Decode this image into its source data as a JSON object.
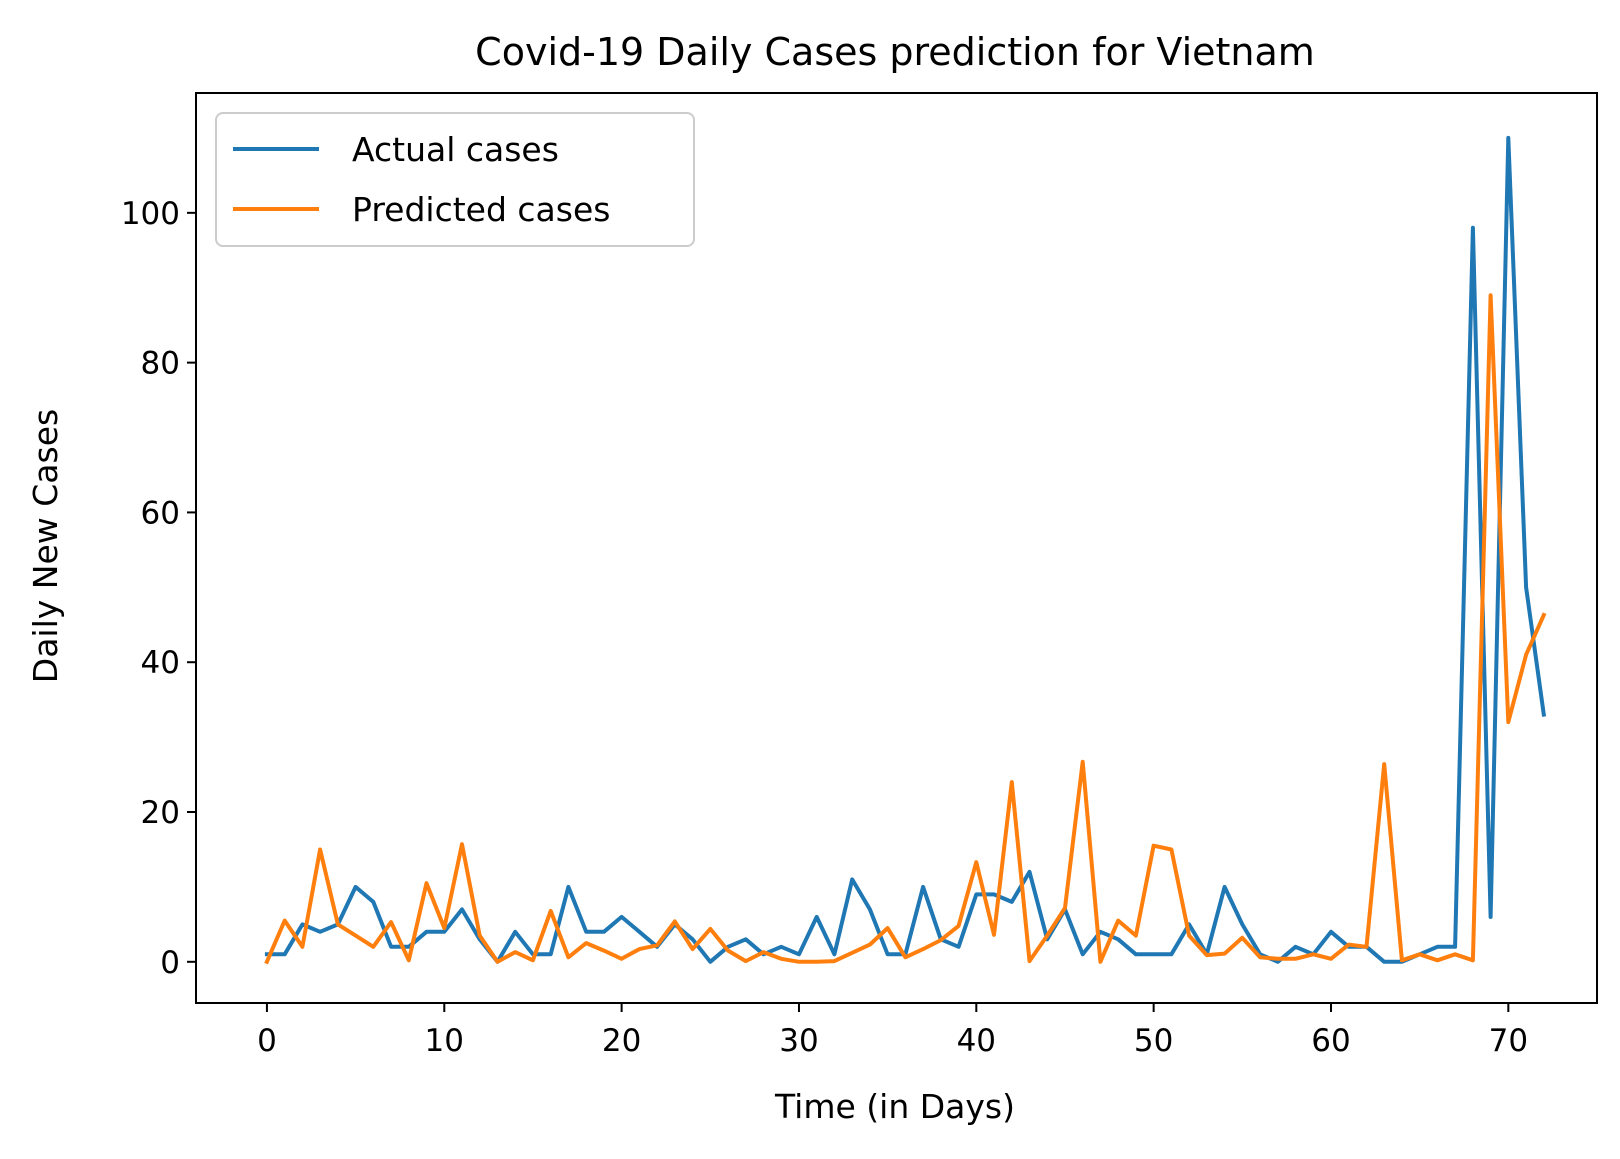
{
  "chart_data": {
    "type": "line",
    "title": "Covid-19 Daily Cases prediction for Vietnam",
    "xlabel": "Time (in Days)",
    "ylabel": "Daily New Cases",
    "xlim": [
      -4,
      75
    ],
    "ylim": [
      -5.5,
      116
    ],
    "xticks": [
      0,
      10,
      20,
      30,
      40,
      50,
      60,
      70
    ],
    "yticks": [
      0,
      20,
      40,
      60,
      80,
      100
    ],
    "grid": false,
    "legend_position": "top-left",
    "x": [
      0,
      1,
      2,
      3,
      4,
      5,
      6,
      7,
      8,
      9,
      10,
      11,
      12,
      13,
      14,
      15,
      16,
      17,
      18,
      19,
      20,
      21,
      22,
      23,
      24,
      25,
      26,
      27,
      28,
      29,
      30,
      31,
      32,
      33,
      34,
      35,
      36,
      37,
      38,
      39,
      40,
      41,
      42,
      43,
      44,
      45,
      46,
      47,
      48,
      49,
      50,
      51,
      52,
      53,
      54,
      55,
      56,
      57,
      58,
      59,
      60,
      61,
      62,
      63,
      64,
      65,
      66,
      67,
      68,
      69,
      70,
      71,
      72
    ],
    "series": [
      {
        "name": "Actual cases",
        "color": "#1f77b4",
        "values": [
          1,
          1,
          5,
          4,
          5,
          10,
          8,
          2,
          2,
          4,
          4,
          7,
          3,
          0,
          4,
          1,
          1,
          10,
          4,
          4,
          6,
          4,
          2,
          5,
          3,
          0,
          2,
          3,
          1,
          2,
          1,
          6,
          1,
          11,
          7,
          1,
          1,
          10,
          3,
          2,
          9,
          9,
          8,
          12,
          3,
          7,
          1,
          4,
          3,
          1,
          1,
          1,
          5,
          1,
          10,
          5,
          1,
          0,
          2,
          1,
          4,
          2,
          2,
          0,
          0,
          1,
          2,
          2,
          98,
          6,
          110,
          50,
          33
        ]
      },
      {
        "name": "Predicted cases",
        "color": "#ff7f0e",
        "values": [
          0,
          5.5,
          2,
          15,
          5,
          3.5,
          2,
          5.3,
          0.2,
          10.5,
          4.5,
          15.7,
          3.5,
          0,
          1.3,
          0.2,
          6.8,
          0.6,
          2.5,
          1.5,
          0.4,
          1.7,
          2.2,
          5.4,
          1.7,
          4.4,
          1.5,
          0.1,
          1.3,
          0.4,
          0,
          0,
          0.1,
          1.2,
          2.3,
          4.5,
          0.6,
          1.7,
          2.9,
          4.8,
          13.3,
          3.6,
          24,
          0.1,
          3.5,
          7.2,
          26.7,
          0,
          5.5,
          3.5,
          15.5,
          15,
          3.5,
          0.9,
          1.1,
          3.2,
          0.6,
          0.4,
          0.4,
          1,
          0.4,
          2.3,
          2,
          26.4,
          0.2,
          1,
          0.2,
          1,
          0.2,
          89,
          32,
          41,
          46.3
        ]
      }
    ]
  }
}
